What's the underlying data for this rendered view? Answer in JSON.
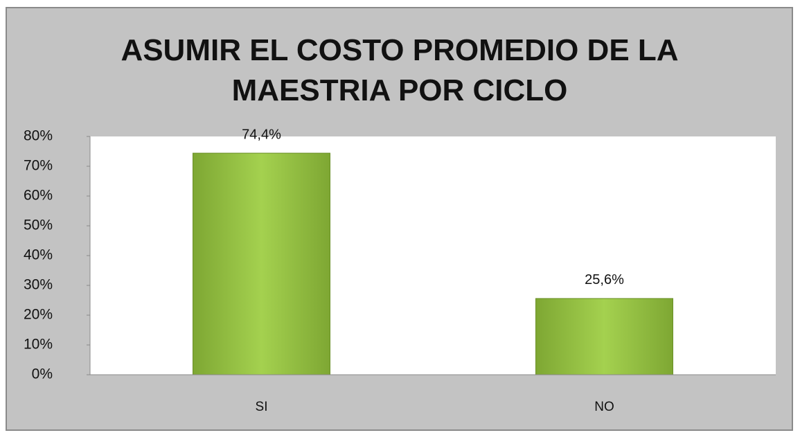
{
  "chart_data": {
    "type": "bar",
    "title": "ASUMIR EL COSTO PROMEDIO DE LA MAESTRIA POR CICLO",
    "categories": [
      "SI",
      "NO"
    ],
    "values": [
      74.4,
      25.6
    ],
    "value_labels": [
      "74,4%",
      "25,6%"
    ],
    "color": "#9bc84a",
    "ylim": [
      0,
      80
    ],
    "yticks": [
      {
        "value": 0,
        "label": "0%"
      },
      {
        "value": 10,
        "label": "10%"
      },
      {
        "value": 20,
        "label": "20%"
      },
      {
        "value": 30,
        "label": "30%"
      },
      {
        "value": 40,
        "label": "40%"
      },
      {
        "value": 50,
        "label": "50%"
      },
      {
        "value": 60,
        "label": "60%"
      },
      {
        "value": 70,
        "label": "70%"
      },
      {
        "value": 80,
        "label": "80%"
      }
    ],
    "grid": false
  }
}
